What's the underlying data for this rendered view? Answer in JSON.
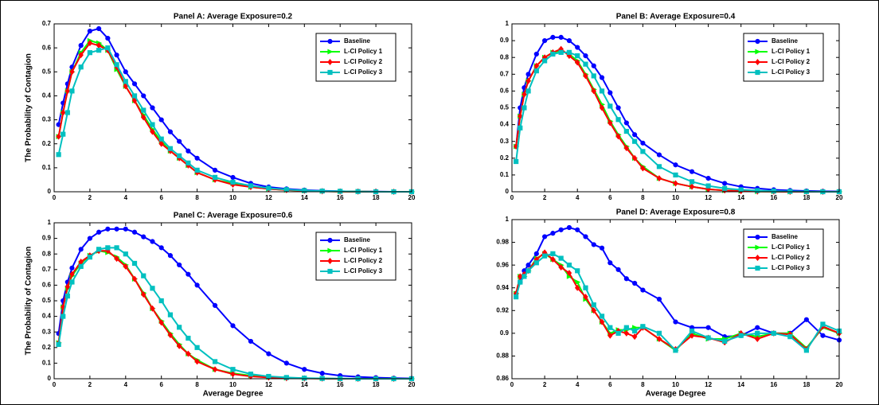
{
  "chart_data": [
    {
      "type": "line",
      "title": "Panel A: Average Exposure=0.2",
      "ylabel": "The Probability of Contagion",
      "x": [
        0.25,
        0.5,
        0.75,
        1,
        1.5,
        2,
        2.5,
        3,
        3.5,
        4,
        4.5,
        5,
        5.5,
        6,
        6.5,
        7,
        7.5,
        8,
        9,
        10,
        11,
        12,
        13,
        14,
        15,
        16,
        17,
        18,
        19,
        20
      ],
      "xlim": [
        0,
        20
      ],
      "xticks": [
        0,
        2,
        4,
        6,
        8,
        10,
        12,
        14,
        16,
        18,
        20
      ],
      "ylim": [
        0,
        0.7
      ],
      "yticks": [
        0,
        0.1,
        0.2,
        0.3,
        0.4,
        0.5,
        0.6,
        0.7
      ],
      "legend": "northeast",
      "series": [
        {
          "name": "Baseline",
          "color": "#0000ff",
          "marker": "circle",
          "values": [
            0.28,
            0.37,
            0.45,
            0.52,
            0.61,
            0.67,
            0.68,
            0.64,
            0.57,
            0.5,
            0.45,
            0.4,
            0.35,
            0.3,
            0.25,
            0.21,
            0.17,
            0.14,
            0.09,
            0.06,
            0.035,
            0.02,
            0.012,
            0.007,
            0.004,
            0.002,
            0.001,
            0.001,
            0,
            0
          ]
        },
        {
          "name": "L-CI Policy 1",
          "color": "#00ff00",
          "marker": "triangle",
          "values": [
            0.23,
            0.33,
            0.42,
            0.5,
            0.58,
            0.63,
            0.62,
            0.59,
            0.51,
            0.44,
            0.38,
            0.32,
            0.26,
            0.21,
            0.17,
            0.14,
            0.11,
            0.08,
            0.05,
            0.035,
            0.02,
            0.012,
            0.007,
            0.004,
            0.002,
            0.001,
            0.001,
            0,
            0,
            0
          ]
        },
        {
          "name": "L-CI Policy 2",
          "color": "#ff0000",
          "marker": "diamond",
          "values": [
            0.23,
            0.33,
            0.42,
            0.5,
            0.57,
            0.62,
            0.61,
            0.59,
            0.52,
            0.44,
            0.38,
            0.31,
            0.25,
            0.2,
            0.17,
            0.14,
            0.11,
            0.08,
            0.05,
            0.03,
            0.02,
            0.012,
            0.007,
            0.004,
            0.002,
            0.001,
            0.001,
            0,
            0,
            0
          ]
        },
        {
          "name": "L-CI Policy 3",
          "color": "#00c0c0",
          "marker": "square",
          "values": [
            0.155,
            0.24,
            0.33,
            0.42,
            0.52,
            0.58,
            0.59,
            0.6,
            0.53,
            0.46,
            0.4,
            0.34,
            0.28,
            0.22,
            0.18,
            0.15,
            0.12,
            0.09,
            0.06,
            0.04,
            0.025,
            0.015,
            0.009,
            0.005,
            0.003,
            0.002,
            0.001,
            0,
            0,
            0
          ]
        }
      ]
    },
    {
      "type": "line",
      "title": "Panel B: Average Exposure=0.4",
      "x": [
        0.25,
        0.5,
        0.75,
        1,
        1.5,
        2,
        2.5,
        3,
        3.5,
        4,
        4.5,
        5,
        5.5,
        6,
        6.5,
        7,
        7.5,
        8,
        9,
        10,
        11,
        12,
        13,
        14,
        15,
        16,
        17,
        18,
        19,
        20
      ],
      "xlim": [
        0,
        20
      ],
      "xticks": [
        0,
        2,
        4,
        6,
        8,
        10,
        12,
        14,
        16,
        18,
        20
      ],
      "ylim": [
        0,
        1
      ],
      "yticks": [
        0,
        0.1,
        0.2,
        0.3,
        0.4,
        0.5,
        0.6,
        0.7,
        0.8,
        0.9,
        1
      ],
      "legend": "northeast",
      "series": [
        {
          "name": "Baseline",
          "color": "#0000ff",
          "marker": "circle",
          "values": [
            0.27,
            0.5,
            0.62,
            0.7,
            0.82,
            0.9,
            0.92,
            0.92,
            0.9,
            0.86,
            0.81,
            0.75,
            0.68,
            0.59,
            0.5,
            0.41,
            0.34,
            0.29,
            0.22,
            0.16,
            0.12,
            0.08,
            0.05,
            0.03,
            0.02,
            0.012,
            0.008,
            0.005,
            0.003,
            0.002
          ]
        },
        {
          "name": "L-CI Policy 1",
          "color": "#00ff00",
          "marker": "triangle",
          "values": [
            0.27,
            0.45,
            0.58,
            0.66,
            0.75,
            0.8,
            0.83,
            0.84,
            0.82,
            0.78,
            0.7,
            0.61,
            0.52,
            0.42,
            0.34,
            0.27,
            0.2,
            0.15,
            0.08,
            0.05,
            0.03,
            0.015,
            0.008,
            0.004,
            0.002,
            0.001,
            0,
            0,
            0,
            0
          ]
        },
        {
          "name": "L-CI Policy 2",
          "color": "#ff0000",
          "marker": "diamond",
          "values": [
            0.27,
            0.45,
            0.58,
            0.66,
            0.75,
            0.8,
            0.83,
            0.85,
            0.81,
            0.77,
            0.69,
            0.6,
            0.5,
            0.41,
            0.33,
            0.26,
            0.2,
            0.14,
            0.08,
            0.05,
            0.03,
            0.015,
            0.008,
            0.004,
            0.002,
            0.001,
            0,
            0,
            0,
            0
          ]
        },
        {
          "name": "L-CI Policy 3",
          "color": "#00c0c0",
          "marker": "square",
          "values": [
            0.18,
            0.38,
            0.5,
            0.6,
            0.72,
            0.78,
            0.82,
            0.83,
            0.83,
            0.81,
            0.76,
            0.69,
            0.6,
            0.51,
            0.43,
            0.36,
            0.3,
            0.24,
            0.15,
            0.1,
            0.06,
            0.035,
            0.02,
            0.012,
            0.007,
            0.004,
            0.002,
            0.001,
            0,
            0
          ]
        }
      ]
    },
    {
      "type": "line",
      "title": "Panel C: Average Exposure=0.6",
      "xlabel": "Average Degree",
      "ylabel": "The Probability of Contagion",
      "x": [
        0.25,
        0.5,
        0.75,
        1,
        1.5,
        2,
        2.5,
        3,
        3.5,
        4,
        4.5,
        5,
        5.5,
        6,
        6.5,
        7,
        7.5,
        8,
        9,
        10,
        11,
        12,
        13,
        14,
        15,
        16,
        17,
        18,
        19,
        20
      ],
      "xlim": [
        0,
        20
      ],
      "xticks": [
        0,
        2,
        4,
        6,
        8,
        10,
        12,
        14,
        16,
        18,
        20
      ],
      "ylim": [
        0,
        1
      ],
      "yticks": [
        0,
        0.1,
        0.2,
        0.3,
        0.4,
        0.5,
        0.6,
        0.7,
        0.8,
        0.9,
        1
      ],
      "legend": "northeast",
      "series": [
        {
          "name": "Baseline",
          "color": "#0000ff",
          "marker": "circle",
          "values": [
            0.29,
            0.5,
            0.62,
            0.71,
            0.83,
            0.9,
            0.94,
            0.96,
            0.96,
            0.96,
            0.94,
            0.91,
            0.88,
            0.84,
            0.79,
            0.73,
            0.67,
            0.6,
            0.47,
            0.34,
            0.24,
            0.16,
            0.1,
            0.06,
            0.035,
            0.02,
            0.012,
            0.007,
            0.004,
            0.002
          ]
        },
        {
          "name": "L-CI Policy 1",
          "color": "#00ff00",
          "marker": "triangle",
          "values": [
            0.23,
            0.46,
            0.58,
            0.66,
            0.74,
            0.79,
            0.82,
            0.81,
            0.78,
            0.73,
            0.64,
            0.55,
            0.45,
            0.37,
            0.29,
            0.22,
            0.16,
            0.12,
            0.06,
            0.035,
            0.02,
            0.01,
            0.005,
            0.003,
            0.001,
            0,
            0,
            0,
            0,
            0
          ]
        },
        {
          "name": "L-CI Policy 2",
          "color": "#ff0000",
          "marker": "diamond",
          "values": [
            0.23,
            0.46,
            0.59,
            0.67,
            0.75,
            0.79,
            0.82,
            0.82,
            0.77,
            0.72,
            0.64,
            0.54,
            0.45,
            0.36,
            0.28,
            0.21,
            0.16,
            0.11,
            0.06,
            0.03,
            0.015,
            0.008,
            0.004,
            0.002,
            0.001,
            0,
            0,
            0,
            0,
            0
          ]
        },
        {
          "name": "L-CI Policy 3",
          "color": "#00c0c0",
          "marker": "square",
          "values": [
            0.22,
            0.4,
            0.53,
            0.62,
            0.72,
            0.78,
            0.83,
            0.84,
            0.84,
            0.8,
            0.74,
            0.66,
            0.58,
            0.5,
            0.41,
            0.33,
            0.26,
            0.2,
            0.11,
            0.06,
            0.03,
            0.015,
            0.008,
            0.004,
            0.002,
            0.001,
            0,
            0,
            0,
            0
          ]
        }
      ]
    },
    {
      "type": "line",
      "title": "Panel D: Average Exposure=0.8",
      "xlabel": "Average Degree",
      "x": [
        0.25,
        0.5,
        0.75,
        1,
        1.5,
        2,
        2.5,
        3,
        3.5,
        4,
        4.5,
        5,
        5.5,
        6,
        6.5,
        7,
        7.5,
        8,
        9,
        10,
        11,
        12,
        13,
        14,
        15,
        16,
        17,
        18,
        19,
        20
      ],
      "xlim": [
        0,
        20
      ],
      "xticks": [
        0,
        2,
        4,
        6,
        8,
        10,
        12,
        14,
        16,
        18,
        20
      ],
      "ylim": [
        0.86,
        1
      ],
      "yticks": [
        0.86,
        0.88,
        0.9,
        0.92,
        0.94,
        0.96,
        0.98,
        1
      ],
      "legend": "northeast",
      "series": [
        {
          "name": "Baseline",
          "color": "#0000ff",
          "marker": "circle",
          "values": [
            0.935,
            0.945,
            0.955,
            0.96,
            0.97,
            0.985,
            0.988,
            0.991,
            0.993,
            0.991,
            0.985,
            0.978,
            0.975,
            0.962,
            0.956,
            0.948,
            0.944,
            0.938,
            0.93,
            0.91,
            0.905,
            0.905,
            0.897,
            0.898,
            0.905,
            0.9,
            0.9,
            0.912,
            0.898,
            0.894
          ]
        },
        {
          "name": "L-CI Policy 1",
          "color": "#00ff00",
          "marker": "triangle",
          "values": [
            0.935,
            0.95,
            0.95,
            0.955,
            0.966,
            0.97,
            0.965,
            0.96,
            0.95,
            0.945,
            0.93,
            0.92,
            0.91,
            0.9,
            0.903,
            0.903,
            0.905,
            0.905,
            0.895,
            0.885,
            0.9,
            0.895,
            0.895,
            0.9,
            0.897,
            0.9,
            0.9,
            0.887,
            0.905,
            0.9
          ]
        },
        {
          "name": "L-CI Policy 2",
          "color": "#ff0000",
          "marker": "diamond",
          "values": [
            0.935,
            0.95,
            0.952,
            0.955,
            0.965,
            0.971,
            0.965,
            0.958,
            0.953,
            0.94,
            0.932,
            0.92,
            0.91,
            0.898,
            0.902,
            0.9,
            0.897,
            0.905,
            0.895,
            0.886,
            0.898,
            0.896,
            0.892,
            0.9,
            0.895,
            0.9,
            0.899,
            0.886,
            0.906,
            0.9
          ]
        },
        {
          "name": "L-CI Policy 3",
          "color": "#00c0c0",
          "marker": "square",
          "values": [
            0.932,
            0.945,
            0.95,
            0.955,
            0.962,
            0.968,
            0.97,
            0.966,
            0.96,
            0.955,
            0.94,
            0.925,
            0.915,
            0.905,
            0.9,
            0.905,
            0.902,
            0.906,
            0.9,
            0.885,
            0.902,
            0.896,
            0.893,
            0.898,
            0.9,
            0.9,
            0.897,
            0.885,
            0.908,
            0.902
          ]
        }
      ]
    }
  ]
}
